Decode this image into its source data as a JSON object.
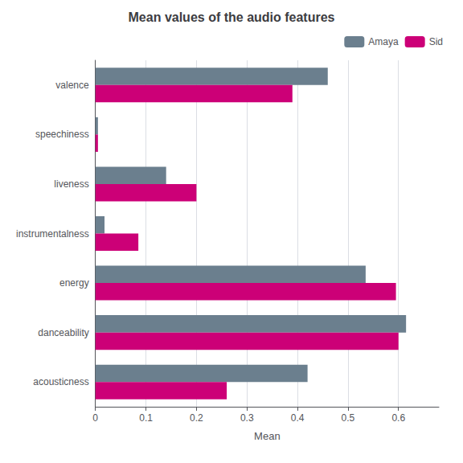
{
  "chart_data": {
    "type": "bar",
    "orientation": "horizontal",
    "title": "Mean values of the audio features",
    "xlabel": "Mean",
    "categories": [
      "acousticness",
      "danceability",
      "energy",
      "instrumentalness",
      "liveness",
      "speechiness",
      "valence"
    ],
    "series": [
      {
        "name": "Amaya",
        "color": "#6b7f8e",
        "values": [
          0.42,
          0.615,
          0.535,
          0.018,
          0.14,
          0.005,
          0.46
        ]
      },
      {
        "name": "Sid",
        "color": "#cc0077",
        "values": [
          0.26,
          0.6,
          0.595,
          0.085,
          0.2,
          0.005,
          0.39
        ]
      }
    ],
    "xlim": [
      0,
      0.68
    ],
    "xticks": [
      0,
      0.1,
      0.2,
      0.3,
      0.4,
      0.5,
      0.6
    ],
    "grid": true,
    "legend": "upper right"
  }
}
